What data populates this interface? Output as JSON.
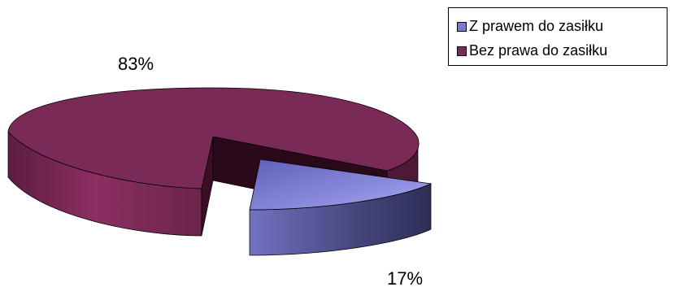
{
  "chart_data": {
    "type": "pie",
    "style": "3d-exploded",
    "series": [
      {
        "name": "Z prawem do zasiłku",
        "value": 17,
        "label": "17%",
        "color": "#8787e0",
        "exploded": true
      },
      {
        "name": "Bez prawa do zasiłku",
        "value": 83,
        "label": "83%",
        "color": "#7a2a57",
        "exploded": false
      }
    ],
    "legend": {
      "placement": "top-right"
    }
  }
}
